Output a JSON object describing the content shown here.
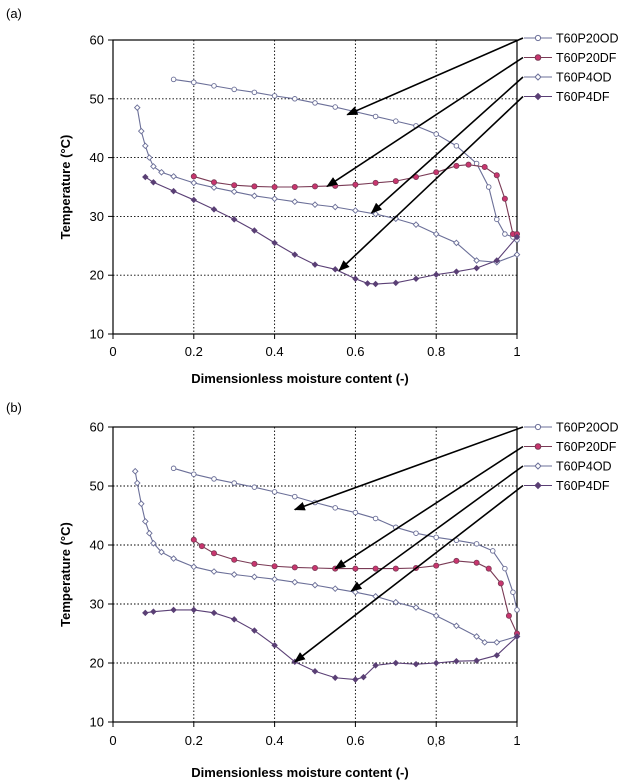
{
  "chart_data": [
    {
      "panel": "(a)",
      "type": "line",
      "xlabel": "Dimensionless moisture content (-)",
      "ylabel": "Temperature (°C)",
      "xlim": [
        0,
        1
      ],
      "ylim": [
        10,
        60
      ],
      "xticks": [
        "0",
        "0.2",
        "0.4",
        "0.6",
        "0.8",
        "1"
      ],
      "yticks": [
        "10",
        "20",
        "30",
        "40",
        "50",
        "60"
      ],
      "grid": true,
      "legend_position": "right",
      "series": [
        {
          "name": "T60P20OD",
          "marker": "open-circle",
          "color": "#6b6f98",
          "x": [
            0.15,
            0.2,
            0.25,
            0.3,
            0.35,
            0.4,
            0.45,
            0.5,
            0.55,
            0.6,
            0.65,
            0.7,
            0.75,
            0.8,
            0.85,
            0.9,
            0.93,
            0.95,
            0.97,
            0.99,
            1.0
          ],
          "y": [
            53.3,
            52.8,
            52.2,
            51.6,
            51.1,
            50.5,
            50.0,
            49.3,
            48.6,
            47.8,
            47.0,
            46.2,
            45.4,
            44.0,
            42.0,
            39.0,
            35.0,
            29.5,
            27.0,
            26.5,
            26.0
          ],
          "label_at": [
            0.58,
            47.3
          ]
        },
        {
          "name": "T60P20DF",
          "marker": "filled-circle",
          "color": "#7a3a55",
          "fill": "#c9356e",
          "x": [
            0.2,
            0.25,
            0.3,
            0.35,
            0.4,
            0.45,
            0.5,
            0.55,
            0.6,
            0.65,
            0.7,
            0.75,
            0.8,
            0.85,
            0.88,
            0.92,
            0.95,
            0.97,
            0.99,
            1.0
          ],
          "y": [
            36.8,
            35.8,
            35.3,
            35.1,
            35.0,
            35.0,
            35.1,
            35.2,
            35.4,
            35.7,
            36.0,
            36.7,
            37.5,
            38.6,
            38.8,
            38.4,
            37.0,
            33.0,
            27.0,
            27.0
          ],
          "label_at": [
            0.53,
            35.1
          ]
        },
        {
          "name": "T60P4OD",
          "marker": "open-diamond",
          "color": "#6b6f98",
          "x": [
            0.06,
            0.07,
            0.08,
            0.09,
            0.1,
            0.12,
            0.15,
            0.2,
            0.25,
            0.3,
            0.35,
            0.4,
            0.45,
            0.5,
            0.55,
            0.6,
            0.65,
            0.7,
            0.75,
            0.8,
            0.85,
            0.9,
            0.95,
            1.0
          ],
          "y": [
            48.5,
            44.5,
            42.0,
            40.0,
            38.5,
            37.5,
            36.8,
            35.7,
            34.9,
            34.2,
            33.5,
            33.0,
            32.5,
            32.0,
            31.6,
            31.0,
            30.4,
            29.6,
            28.6,
            27.0,
            25.5,
            22.5,
            22.2,
            23.5
          ],
          "label_at": [
            0.64,
            30.6
          ]
        },
        {
          "name": "T60P4DF",
          "marker": "filled-diamond",
          "color": "#5a3f75",
          "x": [
            0.08,
            0.1,
            0.15,
            0.2,
            0.25,
            0.3,
            0.35,
            0.4,
            0.45,
            0.5,
            0.55,
            0.6,
            0.63,
            0.65,
            0.7,
            0.75,
            0.8,
            0.85,
            0.9,
            0.95,
            1.0
          ],
          "y": [
            36.7,
            35.8,
            34.3,
            32.8,
            31.2,
            29.5,
            27.6,
            25.5,
            23.5,
            21.8,
            21.0,
            19.4,
            18.6,
            18.5,
            18.7,
            19.4,
            20.1,
            20.6,
            21.2,
            22.5,
            26.5
          ],
          "label_at": [
            0.56,
            20.8
          ]
        }
      ]
    },
    {
      "panel": "(b)",
      "type": "line",
      "xlabel": "Dimensionless moisture content (-)",
      "ylabel": "Temperature (°C)",
      "xlim": [
        0,
        1
      ],
      "ylim": [
        10,
        60
      ],
      "xticks": [
        "0",
        "0.2",
        "0.4",
        "0.6",
        "0,8",
        "1"
      ],
      "yticks": [
        "10",
        "20",
        "30",
        "40",
        "50",
        "60"
      ],
      "grid": true,
      "legend_position": "right",
      "series": [
        {
          "name": "T60P20OD",
          "marker": "open-circle",
          "color": "#6b6f98",
          "x": [
            0.15,
            0.2,
            0.25,
            0.3,
            0.35,
            0.4,
            0.45,
            0.5,
            0.55,
            0.6,
            0.65,
            0.7,
            0.75,
            0.8,
            0.85,
            0.9,
            0.94,
            0.97,
            0.99,
            1.0
          ],
          "y": [
            53.0,
            52.0,
            51.2,
            50.5,
            49.8,
            49.0,
            48.2,
            47.2,
            46.3,
            45.5,
            44.5,
            43.0,
            42.0,
            41.3,
            40.8,
            40.2,
            39.0,
            36.0,
            32.0,
            29.0
          ],
          "label_at": [
            0.45,
            46.0
          ]
        },
        {
          "name": "T60P20DF",
          "marker": "filled-circle",
          "color": "#7a3a55",
          "fill": "#c9356e",
          "x": [
            0.2,
            0.22,
            0.25,
            0.3,
            0.35,
            0.4,
            0.45,
            0.5,
            0.55,
            0.6,
            0.65,
            0.7,
            0.75,
            0.8,
            0.85,
            0.9,
            0.93,
            0.96,
            0.98,
            1.0
          ],
          "y": [
            40.9,
            39.8,
            38.6,
            37.5,
            36.8,
            36.4,
            36.2,
            36.1,
            36.0,
            36.0,
            36.0,
            36.0,
            36.1,
            36.5,
            37.3,
            37.0,
            36.0,
            33.5,
            28.0,
            25.0
          ],
          "label_at": [
            0.55,
            36.0
          ]
        },
        {
          "name": "T60P4OD",
          "marker": "open-diamond",
          "color": "#6b6f98",
          "x": [
            0.055,
            0.06,
            0.07,
            0.08,
            0.09,
            0.1,
            0.12,
            0.15,
            0.2,
            0.25,
            0.3,
            0.35,
            0.4,
            0.45,
            0.5,
            0.55,
            0.6,
            0.65,
            0.7,
            0.75,
            0.8,
            0.85,
            0.9,
            0.92,
            0.95,
            1.0
          ],
          "y": [
            52.5,
            50.5,
            47.0,
            44.0,
            42.0,
            40.3,
            38.8,
            37.7,
            36.3,
            35.5,
            35.0,
            34.6,
            34.2,
            33.7,
            33.2,
            32.6,
            32.0,
            31.3,
            30.3,
            29.4,
            28.0,
            26.3,
            24.5,
            23.5,
            23.5,
            24.5
          ],
          "label_at": [
            0.59,
            32.2
          ]
        },
        {
          "name": "T60P4DF",
          "marker": "filled-diamond",
          "color": "#5a3f75",
          "x": [
            0.08,
            0.1,
            0.15,
            0.2,
            0.25,
            0.3,
            0.35,
            0.4,
            0.45,
            0.5,
            0.55,
            0.6,
            0.62,
            0.65,
            0.7,
            0.75,
            0.8,
            0.85,
            0.9,
            0.95,
            1.0
          ],
          "y": [
            28.5,
            28.7,
            29.0,
            29.0,
            28.5,
            27.4,
            25.5,
            23.0,
            20.2,
            18.6,
            17.5,
            17.2,
            17.6,
            19.6,
            20.0,
            19.8,
            20.0,
            20.3,
            20.4,
            21.3,
            24.5
          ],
          "label_at": [
            0.45,
            20.2
          ]
        }
      ]
    }
  ]
}
